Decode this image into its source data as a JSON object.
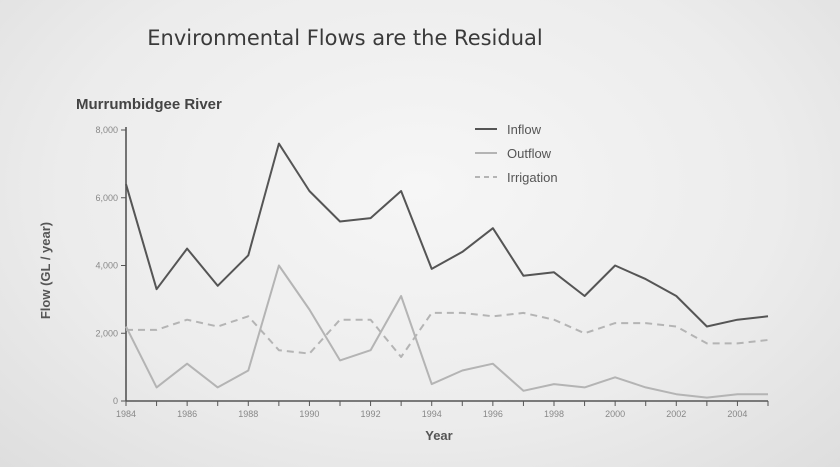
{
  "slide": {
    "title": "Environmental Flows are the Residual"
  },
  "chart_data": {
    "type": "line",
    "title": "Murrumbidgee River",
    "xlabel": "Year",
    "ylabel": "Flow (GL / year)",
    "xlim": [
      1984,
      2005
    ],
    "ylim": [
      0,
      8000
    ],
    "xticks": [
      1984,
      1986,
      1988,
      1990,
      1992,
      1994,
      1996,
      1998,
      2000,
      2002,
      2004
    ],
    "xtick_labels": [
      "1984",
      "1986",
      "1988",
      "1990",
      "1992",
      "1994",
      "1996",
      "1998",
      "2000",
      "2002",
      "2004"
    ],
    "yticks": [
      0,
      2000,
      4000,
      6000,
      8000
    ],
    "ytick_labels": [
      "0",
      "2,000",
      "4,000",
      "6,000",
      "8,000"
    ],
    "legend_position": "top-right",
    "series": [
      {
        "name": "Inflow",
        "style": "solid",
        "color": "#555555",
        "x": [
          1984,
          1985,
          1986,
          1987,
          1988,
          1989,
          1990,
          1991,
          1992,
          1993,
          1994,
          1995,
          1996,
          1997,
          1998,
          1999,
          2000,
          2001,
          2002,
          2003,
          2004,
          2005
        ],
        "y": [
          6400,
          3300,
          4500,
          3400,
          4300,
          7600,
          6200,
          5300,
          5400,
          6200,
          3900,
          4400,
          5100,
          3700,
          3800,
          3100,
          4000,
          3600,
          3100,
          2200,
          2400,
          2500
        ]
      },
      {
        "name": "Outflow",
        "style": "solid",
        "color": "#b4b4b4",
        "x": [
          1984,
          1985,
          1986,
          1987,
          1988,
          1989,
          1990,
          1991,
          1992,
          1993,
          1994,
          1995,
          1996,
          1997,
          1998,
          1999,
          2000,
          2001,
          2002,
          2003,
          2004,
          2005
        ],
        "y": [
          2200,
          400,
          1100,
          400,
          900,
          4000,
          2700,
          1200,
          1500,
          3100,
          500,
          900,
          1100,
          300,
          500,
          400,
          700,
          400,
          200,
          100,
          200,
          200
        ]
      },
      {
        "name": "Irrigation",
        "style": "dashed",
        "color": "#b4b4b4",
        "x": [
          1984,
          1985,
          1986,
          1987,
          1988,
          1989,
          1990,
          1991,
          1992,
          1993,
          1994,
          1995,
          1996,
          1997,
          1998,
          1999,
          2000,
          2001,
          2002,
          2003,
          2004,
          2005
        ],
        "y": [
          2100,
          2100,
          2400,
          2200,
          2500,
          1500,
          1400,
          2400,
          2400,
          1300,
          2600,
          2600,
          2500,
          2600,
          2400,
          2000,
          2300,
          2300,
          2200,
          1700,
          1700,
          1800
        ]
      }
    ]
  }
}
